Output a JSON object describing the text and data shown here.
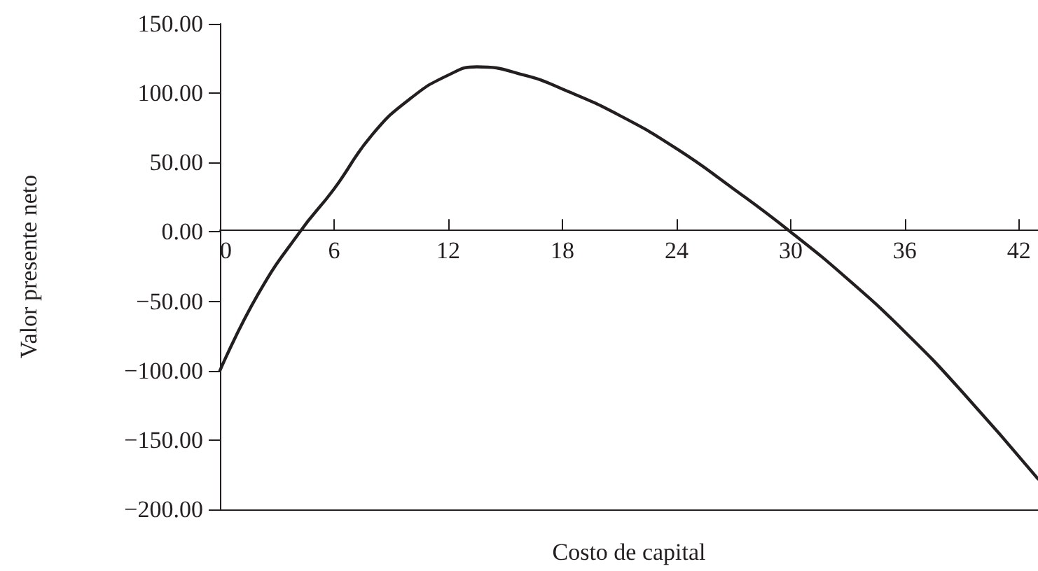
{
  "chart_data": {
    "type": "line",
    "xlabel": "Costo de capital",
    "ylabel": "Valor presente neto",
    "x": [
      0,
      2,
      4.2,
      6,
      8,
      10,
      12,
      13.5,
      16,
      18,
      21,
      24,
      27,
      30,
      33,
      36,
      39,
      43
    ],
    "series": [
      {
        "color": "#231f20",
        "values": [
          -100,
          -45,
          0,
          31,
          70,
          96,
          113,
          119,
          113,
          103,
          84,
          60,
          31,
          0,
          -34,
          -72,
          -115,
          -178
        ]
      }
    ],
    "xlim": [
      0,
      43
    ],
    "xticks": [
      0,
      6,
      12,
      18,
      24,
      30,
      36,
      42
    ],
    "ylim": [
      -200,
      150
    ],
    "yticks": [
      {
        "value": 150,
        "label": "150.00"
      },
      {
        "value": 100,
        "label": "100.00"
      },
      {
        "value": 50,
        "label": "50.00"
      },
      {
        "value": 0,
        "label": "0.00"
      },
      {
        "value": -50,
        "label": "−50.00"
      },
      {
        "value": -100,
        "label": "−100.00"
      },
      {
        "value": -150,
        "label": "−150.00"
      },
      {
        "value": -200,
        "label": "−200.00"
      }
    ],
    "grid": false,
    "marker": "none",
    "line_style": "solid"
  }
}
